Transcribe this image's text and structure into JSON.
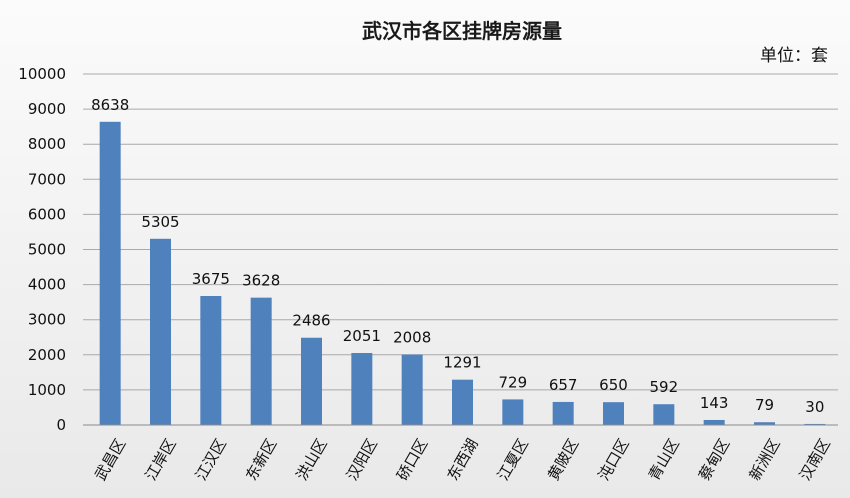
{
  "chart_data": {
    "type": "bar",
    "title": "武汉市各区挂牌房源量",
    "unit_label": "单位：套",
    "xlabel": "",
    "ylabel": "",
    "ylim": [
      0,
      10000
    ],
    "yticks": [
      0,
      1000,
      2000,
      3000,
      4000,
      5000,
      6000,
      7000,
      8000,
      9000,
      10000
    ],
    "grid": true,
    "legend": "none",
    "bar_color": "#4f81bd",
    "categories": [
      "武昌区",
      "江岸区",
      "江汉区",
      "东新区",
      "洪山区",
      "汉阳区",
      "硚口区",
      "东西湖",
      "江夏区",
      "黄陂区",
      "沌口区",
      "青山区",
      "蔡甸区",
      "新洲区",
      "汉南区"
    ],
    "values": [
      8638,
      5305,
      3675,
      3628,
      2486,
      2051,
      2008,
      1291,
      729,
      657,
      650,
      592,
      143,
      79,
      30
    ]
  }
}
